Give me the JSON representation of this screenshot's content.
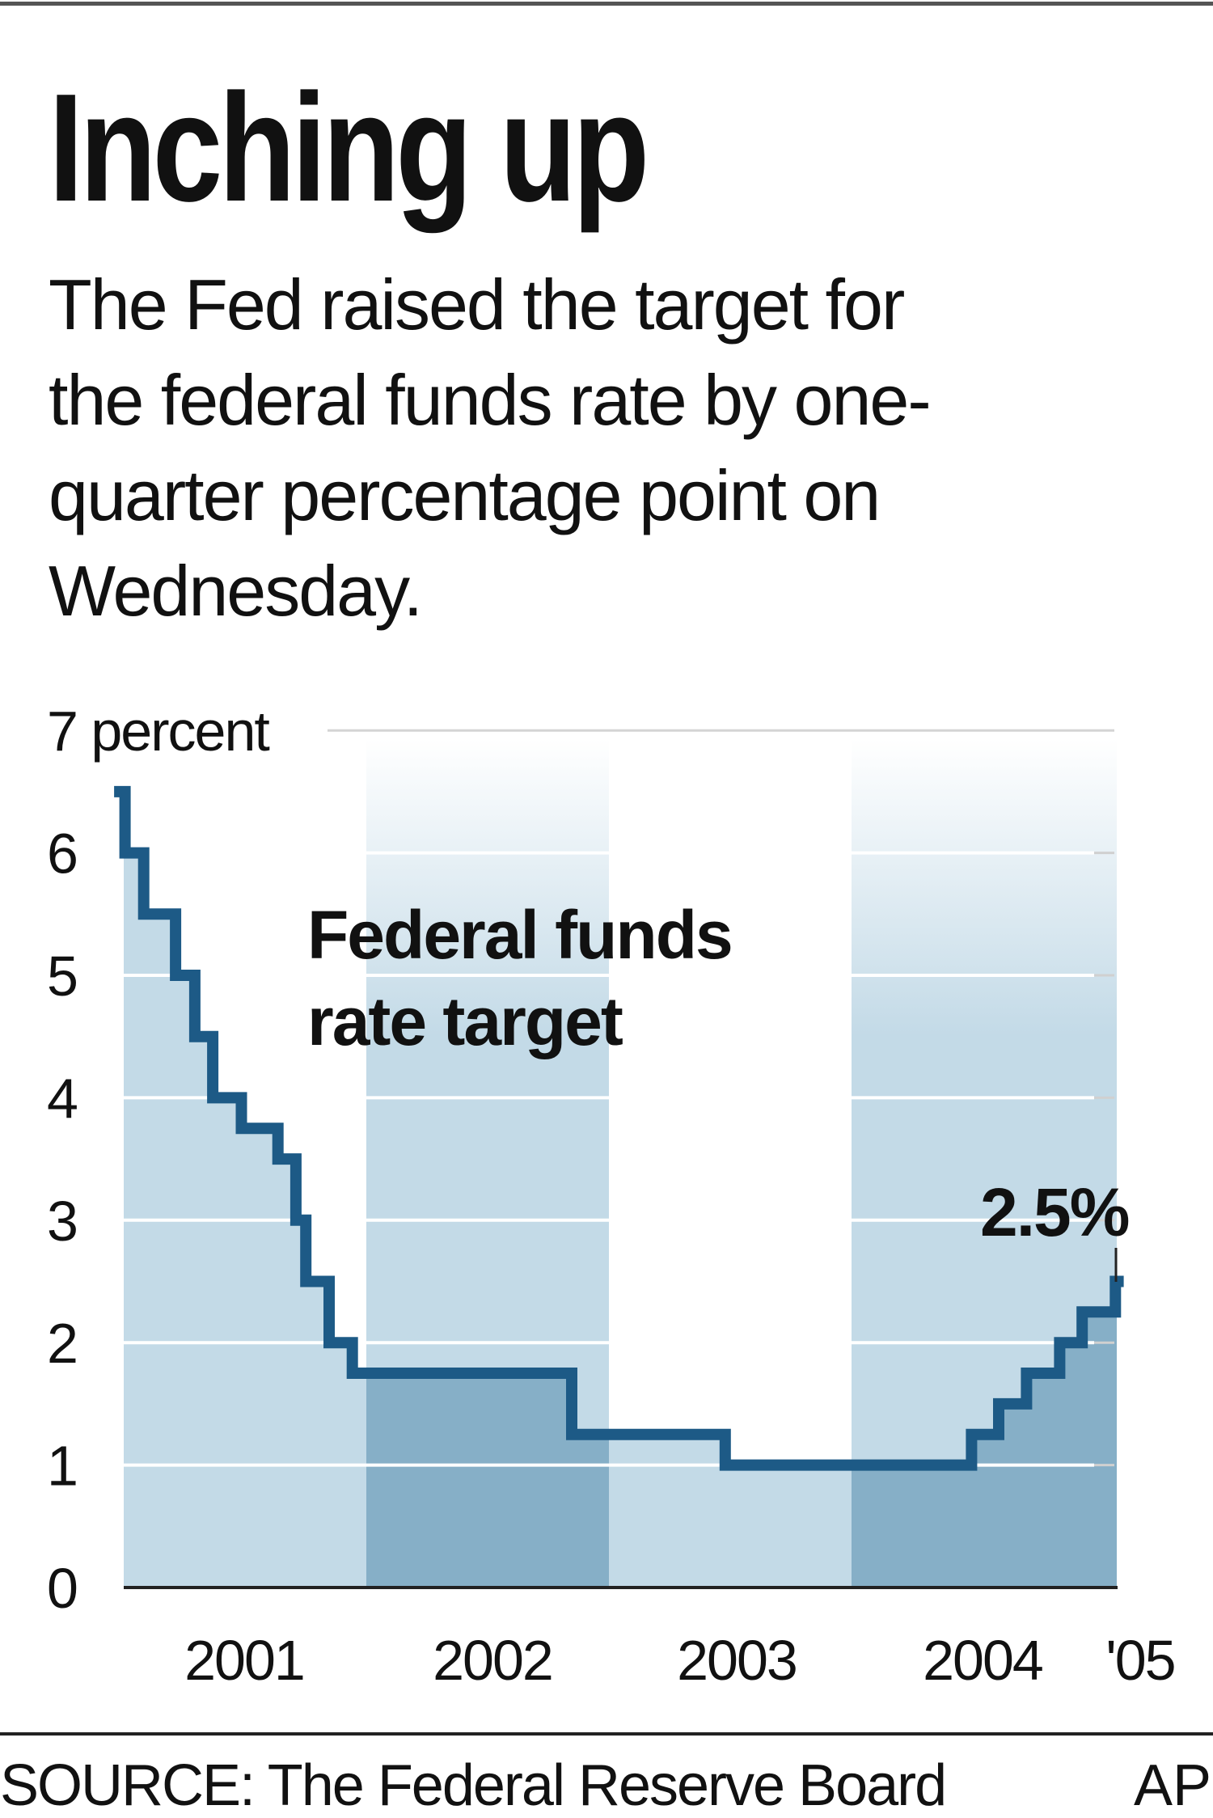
{
  "header": {
    "title": "Inching up",
    "subtitle_lines": [
      "The Fed raised the target for",
      "the federal funds rate by one-",
      "quarter percentage point on",
      "Wednesday."
    ]
  },
  "footer": {
    "source": "SOURCE: The Federal Reserve Board",
    "credit": "AP"
  },
  "chart_data": {
    "type": "line",
    "step": true,
    "title": "Inching up",
    "ylabel": "7 percent",
    "ylim": [
      0,
      7
    ],
    "xlim": [
      "2001-01-01",
      "2005-02-06"
    ],
    "y_ticks": [
      "0",
      "1",
      "2",
      "3",
      "4",
      "5",
      "6",
      "7 percent"
    ],
    "x_ticks": [
      "2001",
      "2002",
      "2003",
      "2004",
      "'05"
    ],
    "grid": true,
    "series": [
      {
        "name": "Federal funds rate target",
        "color": "#1d5a86",
        "dates": [
          "2000-12-26",
          "2001-01-03",
          "2001-01-31",
          "2001-03-20",
          "2001-04-18",
          "2001-05-15",
          "2001-06-27",
          "2001-08-21",
          "2001-09-17",
          "2001-10-02",
          "2001-11-06",
          "2001-12-11",
          "2002-11-06",
          "2003-06-25",
          "2004-06-30",
          "2004-08-10",
          "2004-09-21",
          "2004-11-10",
          "2004-12-14",
          "2005-02-02"
        ],
        "values": [
          6.5,
          6.0,
          5.5,
          5.0,
          4.5,
          4.0,
          3.75,
          3.5,
          3.0,
          2.5,
          2.0,
          1.75,
          1.25,
          1.0,
          1.25,
          1.5,
          1.75,
          2.0,
          2.25,
          2.5
        ]
      }
    ],
    "annotations": {
      "series_label_lines": [
        "Federal funds",
        "rate target"
      ],
      "end_value_label": "2.5%"
    },
    "colors": {
      "band_light": "#c3dae7",
      "band_dark": "#86afc7",
      "line": "#1d5a86"
    }
  }
}
